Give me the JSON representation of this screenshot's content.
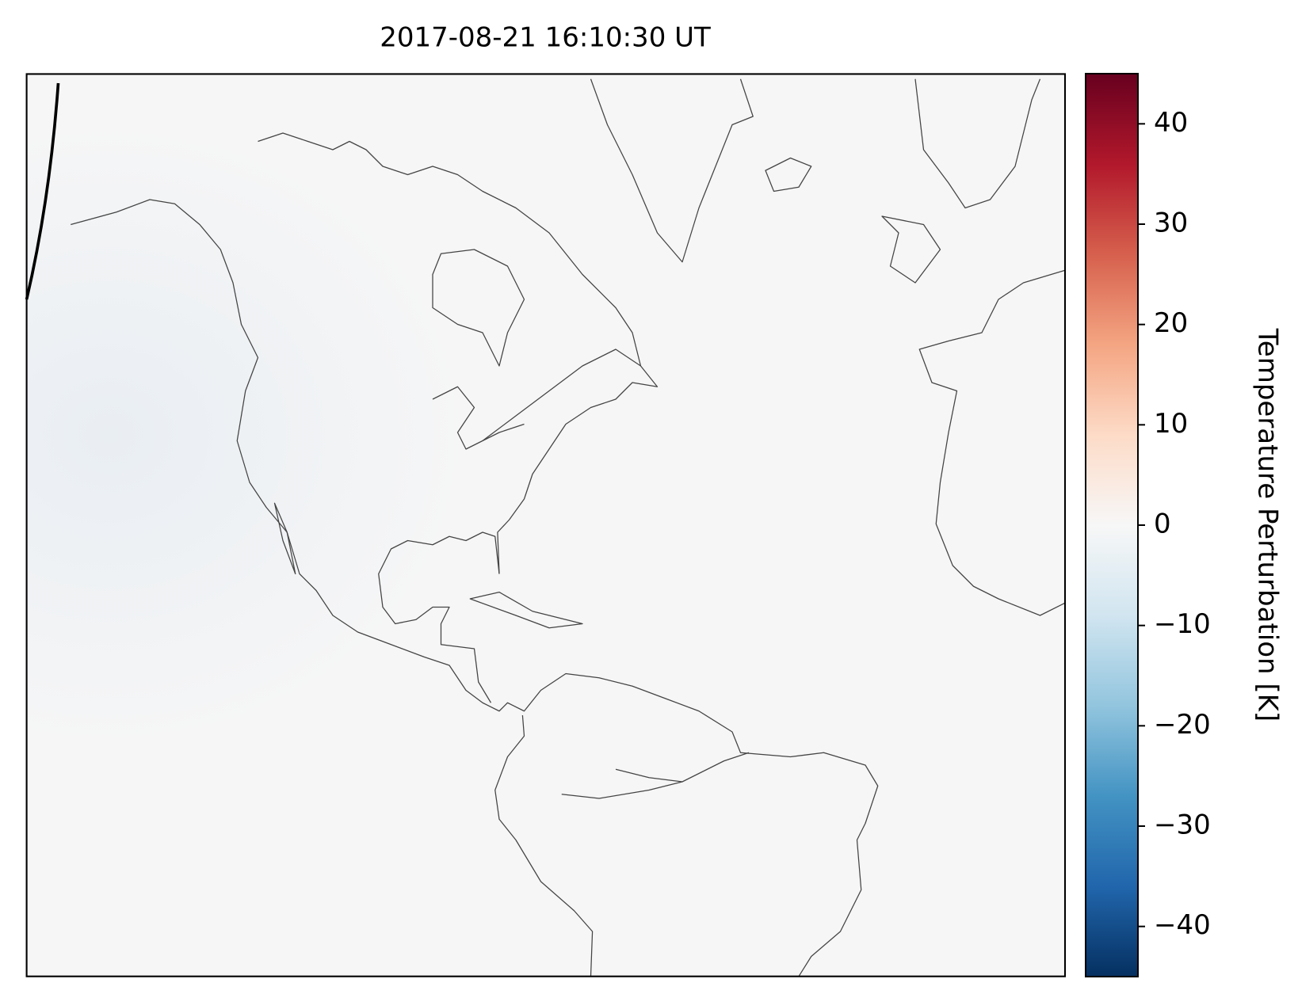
{
  "title": "2017-08-21 16:10:30 UT",
  "colorbar": {
    "label": "Temperature Perturbation [K]",
    "lim": [
      -45,
      45
    ],
    "ticks": [
      {
        "value": -40,
        "label": "−40"
      },
      {
        "value": -30,
        "label": "−30"
      },
      {
        "value": -20,
        "label": "−20"
      },
      {
        "value": -10,
        "label": "−10"
      },
      0,
      10,
      20,
      30,
      40
    ],
    "colors": [
      "#053061",
      "#2166ac",
      "#4393c3",
      "#92c5de",
      "#d1e5f0",
      "#f7f7f7",
      "#fddbc7",
      "#f4a582",
      "#d6604d",
      "#b2182b",
      "#67001f"
    ]
  }
}
